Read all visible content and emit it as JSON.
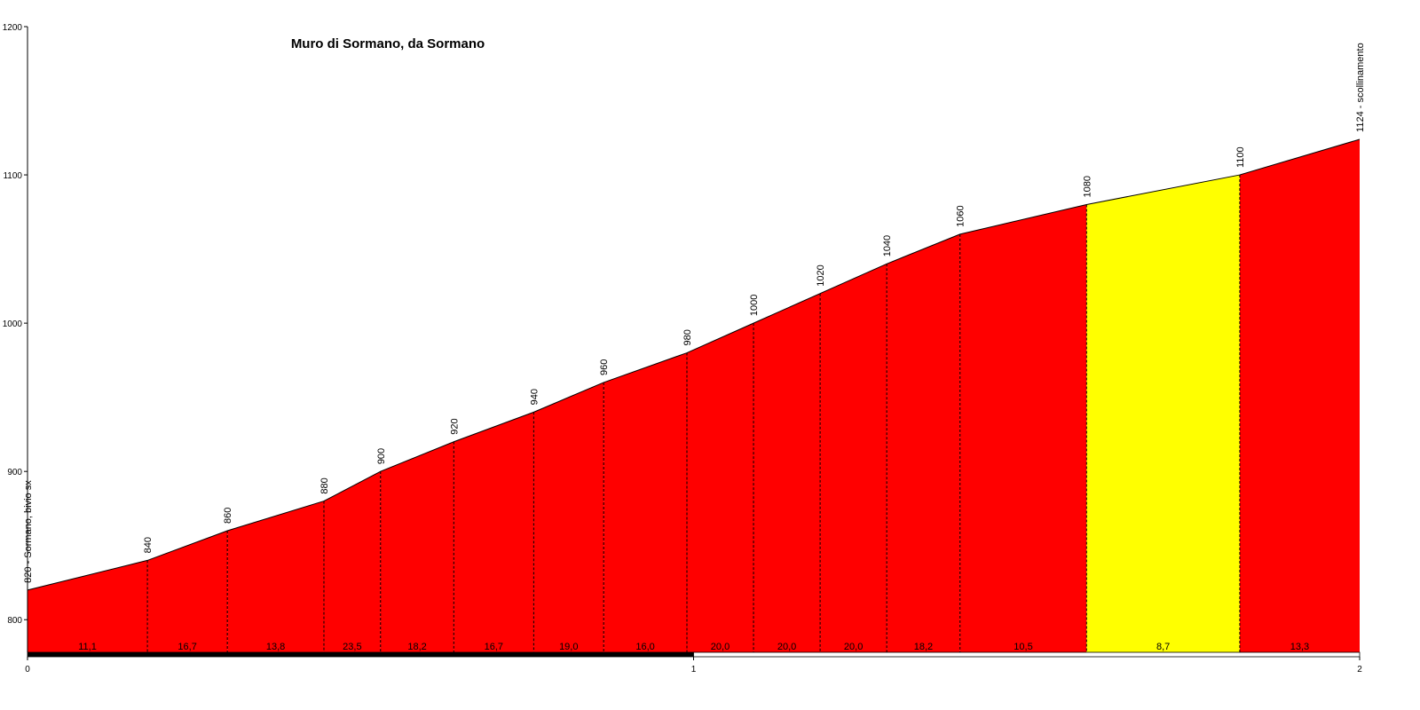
{
  "chart_data": {
    "type": "area",
    "title": "Muro di Sormano, da Sormano",
    "x": [
      0,
      0.18,
      0.3,
      0.445,
      0.53,
      0.64,
      0.76,
      0.865,
      0.99,
      1.09,
      1.19,
      1.29,
      1.4,
      1.59,
      1.82,
      2.0
    ],
    "values": [
      820,
      840,
      860,
      880,
      900,
      920,
      940,
      960,
      980,
      1000,
      1020,
      1040,
      1060,
      1080,
      1100,
      1124
    ],
    "value_labels": [
      "820 - Sormano, bivio sx",
      "840",
      "860",
      "880",
      "900",
      "920",
      "940",
      "960",
      "980",
      "1000",
      "1020",
      "1040",
      "1060",
      "1080",
      "1100",
      "1124 - scollinamento"
    ],
    "segment_values": [
      11.1,
      16.7,
      13.8,
      23.5,
      18.2,
      16.7,
      19.0,
      16.0,
      20.0,
      20.0,
      20.0,
      18.2,
      10.5,
      8.7,
      13.3
    ],
    "segment_labels": [
      "11,1",
      "16,7",
      "13,8",
      "23,5",
      "18,2",
      "16,7",
      "19,0",
      "16,0",
      "20,0",
      "20,0",
      "20,0",
      "18,2",
      "10,5",
      "8,7",
      "13,3"
    ],
    "segment_colors": [
      "#ff0000",
      "#ff0000",
      "#ff0000",
      "#ff0000",
      "#ff0000",
      "#ff0000",
      "#ff0000",
      "#ff0000",
      "#ff0000",
      "#ff0000",
      "#ff0000",
      "#ff0000",
      "#ff0000",
      "#ffff00",
      "#ff0000"
    ],
    "xlim": [
      0,
      2
    ],
    "xticks": [
      0,
      1,
      2
    ],
    "ylim": [
      778,
      1200
    ],
    "yticks": [
      800,
      900,
      1000,
      1100,
      1200
    ]
  }
}
